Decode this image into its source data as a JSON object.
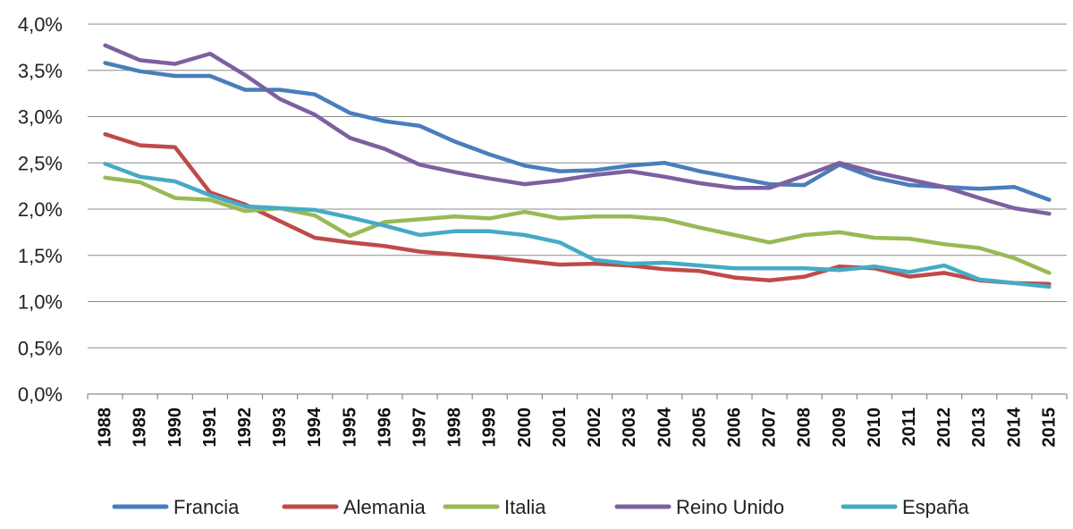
{
  "chart_data": {
    "type": "line",
    "title": "",
    "xlabel": "",
    "ylabel": "",
    "ylim": [
      0,
      4.0
    ],
    "yticks": [
      0,
      0.5,
      1.0,
      1.5,
      2.0,
      2.5,
      3.0,
      3.5,
      4.0
    ],
    "ytick_labels": [
      "0,0%",
      "0,5%",
      "1,0%",
      "1,5%",
      "2,0%",
      "2,5%",
      "3,0%",
      "3,5%",
      "4,0%"
    ],
    "grid": true,
    "legend_position": "bottom",
    "categories": [
      "1988",
      "1989",
      "1990",
      "1991",
      "1992",
      "1993",
      "1994",
      "1995",
      "1996",
      "1997",
      "1998",
      "1999",
      "2000",
      "2001",
      "2002",
      "2003",
      "2004",
      "2005",
      "2006",
      "2007",
      "2008",
      "2009",
      "2010",
      "2011",
      "2012",
      "2013",
      "2014",
      "2015"
    ],
    "series": [
      {
        "name": "Francia",
        "color": "#4a7ebb",
        "values": [
          3.58,
          3.49,
          3.44,
          3.44,
          3.29,
          3.29,
          3.24,
          3.04,
          2.95,
          2.9,
          2.73,
          2.59,
          2.47,
          2.41,
          2.42,
          2.47,
          2.5,
          2.41,
          2.34,
          2.27,
          2.26,
          2.48,
          2.34,
          2.26,
          2.24,
          2.22,
          2.24,
          2.1
        ]
      },
      {
        "name": "Alemania",
        "color": "#be4b48",
        "values": [
          2.81,
          2.69,
          2.67,
          2.18,
          2.05,
          1.87,
          1.69,
          1.64,
          1.6,
          1.54,
          1.51,
          1.48,
          1.44,
          1.4,
          1.41,
          1.39,
          1.35,
          1.33,
          1.26,
          1.23,
          1.27,
          1.38,
          1.36,
          1.27,
          1.31,
          1.23,
          1.2,
          1.19
        ]
      },
      {
        "name": "Italia",
        "color": "#98b954",
        "values": [
          2.34,
          2.29,
          2.12,
          2.1,
          1.98,
          2.01,
          1.93,
          1.71,
          1.86,
          1.89,
          1.92,
          1.9,
          1.97,
          1.9,
          1.92,
          1.92,
          1.89,
          1.8,
          1.72,
          1.64,
          1.72,
          1.75,
          1.69,
          1.68,
          1.62,
          1.58,
          1.47,
          1.31
        ]
      },
      {
        "name": "Reino Unido",
        "color": "#7d60a0",
        "values": [
          3.77,
          3.61,
          3.57,
          3.68,
          3.45,
          3.19,
          3.02,
          2.77,
          2.65,
          2.48,
          2.4,
          2.33,
          2.27,
          2.31,
          2.37,
          2.41,
          2.35,
          2.28,
          2.23,
          2.23,
          2.36,
          2.5,
          2.4,
          2.32,
          2.24,
          2.12,
          2.01,
          1.95
        ]
      },
      {
        "name": "España",
        "color": "#46aac5",
        "values": [
          2.49,
          2.35,
          2.3,
          2.15,
          2.03,
          2.01,
          1.99,
          1.91,
          1.82,
          1.72,
          1.76,
          1.76,
          1.72,
          1.64,
          1.45,
          1.41,
          1.42,
          1.39,
          1.36,
          1.36,
          1.36,
          1.34,
          1.38,
          1.32,
          1.39,
          1.24,
          1.2,
          1.16
        ]
      }
    ]
  }
}
